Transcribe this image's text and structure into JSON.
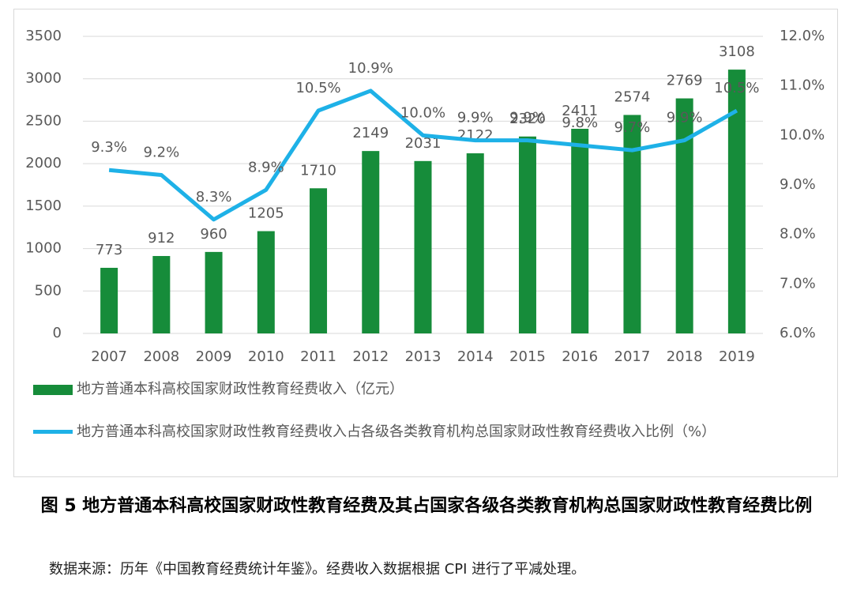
{
  "chart_data": {
    "type": "bar",
    "categories": [
      "2007",
      "2008",
      "2009",
      "2010",
      "2011",
      "2012",
      "2013",
      "2014",
      "2015",
      "2016",
      "2017",
      "2018",
      "2019"
    ],
    "series": [
      {
        "name": "地方普通本科高校国家财政性教育经费收入（亿元）",
        "type": "bar",
        "color": "#168c3a",
        "values": [
          773,
          912,
          960,
          1205,
          1710,
          2149,
          2031,
          2122,
          2320,
          2411,
          2574,
          2769,
          3108
        ]
      },
      {
        "name": "地方普通本科高校国家财政性教育经费收入占各级各类教育机构总国家财政性教育经费收入比例（%）",
        "type": "line",
        "axis": "y2",
        "color": "#1eb1e7",
        "values": [
          9.3,
          9.2,
          8.3,
          8.9,
          10.5,
          10.9,
          10.0,
          9.9,
          9.9,
          9.8,
          9.7,
          9.9,
          10.5
        ],
        "value_labels": [
          "9.3%",
          "9.2%",
          "8.3%",
          "8.9%",
          "10.5%",
          "10.9%",
          "10.0%",
          "9.9%",
          "9.9%",
          "9.8%",
          "9.7%",
          "9.9%",
          "10.5%"
        ]
      }
    ],
    "ylim": [
      0,
      3500
    ],
    "yticks": [
      0,
      500,
      1000,
      1500,
      2000,
      2500,
      3000,
      3500
    ],
    "y2lim": [
      6,
      12
    ],
    "y2ticks": [
      {
        "value": 6,
        "label": "6.0%"
      },
      {
        "value": 7,
        "label": "7.0%"
      },
      {
        "value": 8,
        "label": "8.0%"
      },
      {
        "value": 9,
        "label": "9.0%"
      },
      {
        "value": 10,
        "label": "10.0%"
      },
      {
        "value": 11,
        "label": "11.0%"
      },
      {
        "value": 12,
        "label": "12.0%"
      }
    ],
    "grid": true,
    "legend": "bottom"
  },
  "caption": "图 5 地方普通本科高校国家财政性教育经费及其占国家各级各类教育机构总国家财政性教育经费比例",
  "source": "数据来源：历年《中国教育经费统计年鉴》。经费收入数据根据 CPI 进行了平减处理。"
}
